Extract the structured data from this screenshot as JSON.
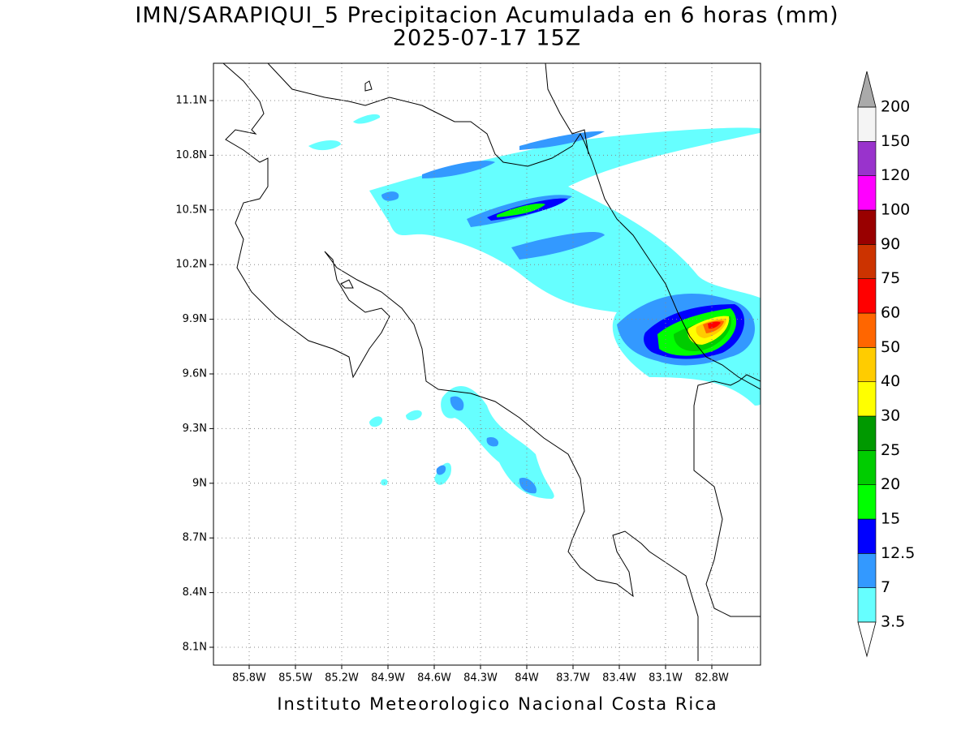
{
  "title": [
    "IMN/SARAPIQUI_5 Precipitacion Acumulada en 6 horas (mm)",
    "2025-07-17 15Z"
  ],
  "x_axis": {
    "ticks": [
      "85.8W",
      "85.5W",
      "85.2W",
      "84.9W",
      "84.6W",
      "84.3W",
      "84W",
      "83.7W",
      "83.4W",
      "83.1W",
      "82.8W"
    ]
  },
  "y_axis": {
    "ticks": [
      "11.1N",
      "10.8N",
      "10.5N",
      "10.2N",
      "9.9N",
      "9.6N",
      "9.3N",
      "9N",
      "8.7N",
      "8.4N",
      "8.1N"
    ]
  },
  "colorbar": {
    "levels": [
      "3.5",
      "7",
      "12.5",
      "15",
      "20",
      "25",
      "30",
      "40",
      "50",
      "60",
      "75",
      "90",
      "100",
      "120",
      "150",
      "200"
    ],
    "colors": [
      "#66ffff",
      "#3399ff",
      "#0000ff",
      "#00ff00",
      "#00cc00",
      "#009900",
      "#ffff00",
      "#ffcc00",
      "#ff6600",
      "#ff0000",
      "#cc3300",
      "#990000",
      "#ff00ff",
      "#9933cc",
      "#f4f4f4"
    ],
    "under_color": "#ffffff",
    "over_color": "#aaaaaa"
  },
  "footer": "Instituto Meteorologico Nacional Costa Rica"
}
